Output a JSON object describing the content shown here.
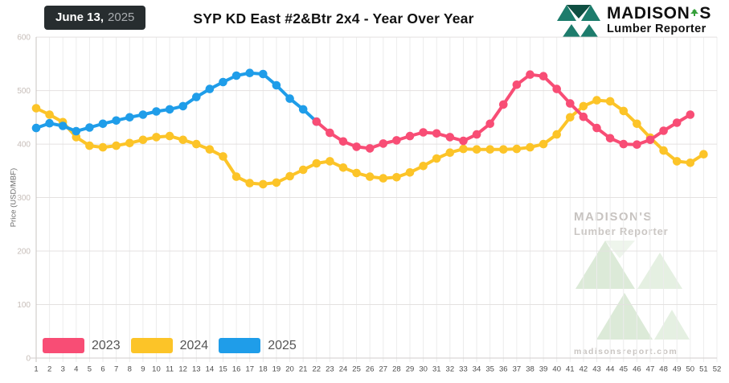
{
  "header": {
    "badge_bold": "June 13,",
    "badge_year": "2025",
    "logo_name_part1": "MADISON",
    "logo_name_part2": "S",
    "logo_subtitle": "Lumber Reporter"
  },
  "watermark": {
    "line1": "MADISON'S",
    "line2": "Lumber Reporter",
    "url": "madisonsreport.com"
  },
  "chart_data": {
    "type": "line",
    "title": "SYP KD East #2&Btr 2x4 - Year Over Year",
    "xlabel": "",
    "ylabel": "Price (USD/MBF)",
    "xlim": [
      1,
      52
    ],
    "ylim": [
      0,
      600
    ],
    "grid": true,
    "legend_position": "bottom-left",
    "y_ticks": [
      0,
      100,
      200,
      300,
      400,
      500,
      600
    ],
    "x_ticks": [
      1,
      2,
      3,
      4,
      5,
      6,
      7,
      8,
      9,
      10,
      11,
      12,
      13,
      14,
      15,
      16,
      17,
      18,
      19,
      20,
      21,
      22,
      23,
      24,
      25,
      26,
      27,
      28,
      29,
      30,
      31,
      32,
      33,
      34,
      35,
      36,
      37,
      38,
      39,
      40,
      41,
      42,
      43,
      44,
      45,
      46,
      47,
      48,
      49,
      50,
      51,
      52
    ],
    "x_unit": "week of year",
    "draw_order": [
      "2024",
      "2025",
      "2023"
    ],
    "series": [
      {
        "name": "2023",
        "color": "#f84d75",
        "start_week": 22,
        "values": [
          442,
          421,
          405,
          395,
          392,
          401,
          407,
          415,
          422,
          420,
          413,
          406,
          418,
          438,
          474,
          511,
          530,
          527,
          503,
          476,
          451,
          430,
          411,
          400,
          399,
          408,
          425,
          440,
          455
        ]
      },
      {
        "name": "2024",
        "color": "#fcc428",
        "start_week": 1,
        "values": [
          467,
          455,
          441,
          413,
          397,
          394,
          397,
          402,
          408,
          413,
          415,
          408,
          400,
          390,
          377,
          339,
          327,
          325,
          328,
          340,
          352,
          364,
          368,
          356,
          346,
          339,
          336,
          338,
          347,
          359,
          373,
          384,
          391,
          390,
          390,
          390,
          391,
          394,
          400,
          418,
          450,
          471,
          482,
          480,
          462,
          438,
          412,
          388,
          368,
          365,
          381
        ]
      },
      {
        "name": "2025",
        "color": "#1f9de9",
        "start_week": 1,
        "values": [
          430,
          439,
          434,
          424,
          431,
          438,
          444,
          450,
          455,
          461,
          465,
          471,
          488,
          503,
          516,
          528,
          533,
          531,
          510,
          485,
          465,
          442
        ]
      }
    ]
  }
}
